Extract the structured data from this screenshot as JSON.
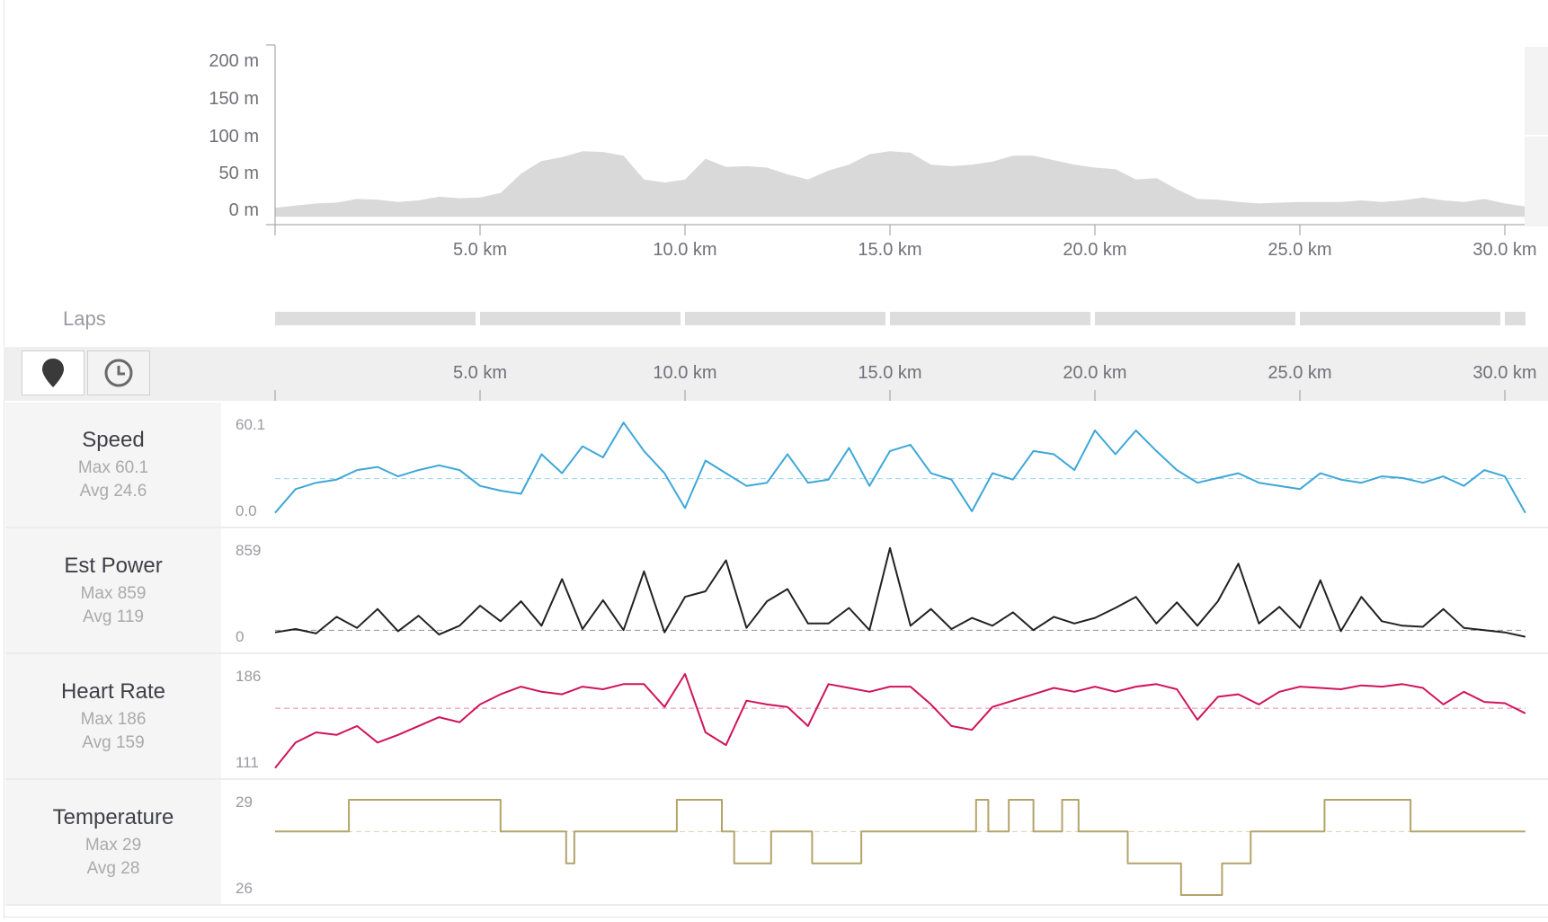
{
  "elevation_axis": {
    "y_ticks": [
      "200 m",
      "150 m",
      "100 m",
      "50 m",
      "0 m"
    ],
    "x_ticks": [
      "5.0 km",
      "10.0 km",
      "15.0 km",
      "20.0 km",
      "25.0 km",
      "30.0 km"
    ]
  },
  "laps": {
    "label": "Laps",
    "count": 7
  },
  "toolbar": {
    "distance_icon": "map-pin-icon",
    "time_icon": "clock-icon",
    "x_ticks": [
      "5.0 km",
      "10.0 km",
      "15.0 km",
      "20.0 km",
      "25.0 km",
      "30.0 km"
    ]
  },
  "metrics": [
    {
      "name": "Speed",
      "max": "Max 60.1",
      "avg": "Avg 24.6",
      "top_label": "60.1",
      "bottom_label": "0.0",
      "color": "#3ea7d8"
    },
    {
      "name": "Est Power",
      "max": "Max 859",
      "avg": "Avg 119",
      "top_label": "859",
      "bottom_label": "0",
      "color": "#222222"
    },
    {
      "name": "Heart Rate",
      "max": "Max 186",
      "avg": "Avg 159",
      "top_label": "186",
      "bottom_label": "111",
      "color": "#d0145a"
    },
    {
      "name": "Temperature",
      "max": "Max 29",
      "avg": "Avg 28",
      "top_label": "29",
      "bottom_label": "26",
      "color": "#b3a46a"
    }
  ],
  "chart_data": [
    {
      "type": "area",
      "x_unit": "km",
      "xlim": [
        0,
        30.5
      ],
      "ylim": [
        -10,
        210
      ],
      "x": [
        0,
        0.5,
        1,
        1.5,
        2,
        2.5,
        3,
        3.5,
        4,
        4.5,
        5,
        5.5,
        6,
        6.5,
        7,
        7.5,
        8,
        8.5,
        9,
        9.5,
        10,
        10.5,
        11,
        11.5,
        12,
        12.5,
        13,
        13.5,
        14,
        14.5,
        15,
        15.5,
        16,
        16.5,
        17,
        17.5,
        18,
        18.5,
        19,
        19.5,
        20,
        20.5,
        21,
        21.5,
        22,
        22.5,
        23,
        23.5,
        24,
        24.5,
        25,
        25.5,
        26,
        26.5,
        27,
        27.5,
        28,
        28.5,
        29,
        29.5,
        30,
        30.5
      ],
      "y": [
        2,
        5,
        8,
        9,
        14,
        13,
        10,
        12,
        17,
        15,
        16,
        22,
        48,
        65,
        70,
        78,
        77,
        72,
        40,
        36,
        40,
        68,
        57,
        58,
        56,
        47,
        40,
        52,
        60,
        74,
        78,
        76,
        60,
        58,
        60,
        64,
        72,
        72,
        66,
        60,
        56,
        54,
        40,
        42,
        27,
        14,
        13,
        10,
        8,
        9,
        10,
        10,
        10,
        12,
        10,
        12,
        16,
        12,
        10,
        14,
        8,
        4
      ]
    },
    {
      "type": "line",
      "name": "Speed",
      "ylim": [
        0,
        60.1
      ],
      "avg": 24.6,
      "x": [
        0,
        0.5,
        1,
        1.5,
        2,
        2.5,
        3,
        3.5,
        4,
        4.5,
        5,
        5.5,
        6,
        6.5,
        7,
        7.5,
        8,
        8.5,
        9,
        9.5,
        10,
        10.5,
        11,
        11.5,
        12,
        12.5,
        13,
        13.5,
        14,
        14.5,
        15,
        15.5,
        16,
        16.5,
        17,
        17.5,
        18,
        18.5,
        19,
        19.5,
        20,
        20.5,
        21,
        21.5,
        22,
        22.5,
        23,
        23.5,
        24,
        24.5,
        25,
        25.5,
        26,
        26.5,
        27,
        27.5,
        28,
        28.5,
        29,
        29.5,
        30,
        30.5
      ],
      "y": [
        3,
        18,
        22,
        24,
        30,
        32,
        26,
        30,
        33,
        30,
        20,
        17,
        15,
        40,
        28,
        45,
        38,
        60,
        42,
        28,
        6,
        36,
        28,
        20,
        22,
        40,
        22,
        24,
        44,
        20,
        42,
        46,
        28,
        24,
        4,
        28,
        24,
        42,
        40,
        30,
        55,
        40,
        55,
        42,
        30,
        22,
        25,
        28,
        22,
        20,
        18,
        28,
        24,
        22,
        26,
        25,
        22,
        26,
        20,
        30,
        26,
        3
      ]
    },
    {
      "type": "line",
      "name": "Est Power",
      "ylim": [
        0,
        859
      ],
      "avg": 119,
      "x": [
        0,
        0.5,
        1,
        1.5,
        2,
        2.5,
        3,
        3.5,
        4,
        4.5,
        5,
        5.5,
        6,
        6.5,
        7,
        7.5,
        8,
        8.5,
        9,
        9.5,
        10,
        10.5,
        11,
        11.5,
        12,
        12.5,
        13,
        13.5,
        14,
        14.5,
        15,
        15.5,
        16,
        16.5,
        17,
        17.5,
        18,
        18.5,
        19,
        19.5,
        20,
        20.5,
        21,
        21.5,
        22,
        22.5,
        23,
        23.5,
        24,
        24.5,
        25,
        25.5,
        26,
        26.5,
        27,
        27.5,
        28,
        28.5,
        29,
        29.5,
        30,
        30.5
      ],
      "y": [
        100,
        130,
        90,
        240,
        140,
        310,
        110,
        250,
        80,
        160,
        340,
        200,
        380,
        160,
        580,
        130,
        390,
        120,
        650,
        100,
        420,
        470,
        750,
        140,
        380,
        490,
        180,
        180,
        320,
        120,
        860,
        160,
        310,
        130,
        230,
        160,
        280,
        120,
        240,
        180,
        230,
        320,
        420,
        180,
        370,
        160,
        380,
        720,
        180,
        330,
        140,
        570,
        110,
        420,
        200,
        160,
        150,
        310,
        140,
        120,
        100,
        60
      ]
    },
    {
      "type": "line",
      "name": "Heart Rate",
      "ylim": [
        111,
        186
      ],
      "avg": 159,
      "x": [
        0,
        0.5,
        1,
        1.5,
        2,
        2.5,
        3,
        3.5,
        4,
        4.5,
        5,
        5.5,
        6,
        6.5,
        7,
        7.5,
        8,
        8.5,
        9,
        9.5,
        10,
        10.5,
        11,
        11.5,
        12,
        12.5,
        13,
        13.5,
        14,
        14.5,
        15,
        15.5,
        16,
        16.5,
        17,
        17.5,
        18,
        18.5,
        19,
        19.5,
        20,
        20.5,
        21,
        21.5,
        22,
        22.5,
        23,
        23.5,
        24,
        24.5,
        25,
        25.5,
        26,
        26.5,
        27,
        27.5,
        28,
        28.5,
        29,
        29.5,
        30,
        30.5
      ],
      "y": [
        112,
        132,
        140,
        138,
        145,
        132,
        138,
        145,
        152,
        148,
        162,
        170,
        176,
        172,
        170,
        176,
        174,
        178,
        178,
        160,
        186,
        140,
        130,
        165,
        162,
        160,
        145,
        178,
        175,
        172,
        176,
        176,
        162,
        145,
        142,
        160,
        165,
        170,
        175,
        172,
        176,
        172,
        176,
        178,
        174,
        150,
        168,
        170,
        162,
        172,
        176,
        175,
        174,
        177,
        176,
        178,
        175,
        162,
        172,
        164,
        163,
        155
      ]
    },
    {
      "type": "line",
      "name": "Temperature",
      "ylim": [
        26,
        29
      ],
      "avg": 28,
      "x": [
        0,
        1.7,
        1.8,
        5.5,
        7.1,
        7.3,
        9.8,
        10.9,
        11.2,
        12.1,
        13.1,
        14.3,
        17.1,
        17.4,
        17.9,
        18.5,
        19.2,
        19.6,
        19.9,
        20.8,
        22.1,
        23.1,
        23.8,
        24.1,
        24.5,
        25.6,
        27.7,
        30.5
      ],
      "y": [
        28,
        28,
        29,
        28,
        27,
        28,
        29,
        28,
        27,
        28,
        27,
        28,
        29,
        28,
        29,
        28,
        29,
        28,
        28,
        27,
        26,
        27,
        28,
        28,
        28,
        29,
        28,
        28
      ]
    }
  ]
}
